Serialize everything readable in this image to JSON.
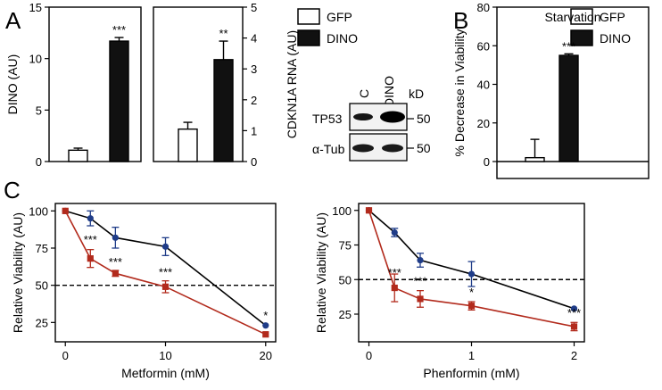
{
  "colors": {
    "black_series": "#111111",
    "white_series": "#ffffff",
    "metformin_blue": "#1f3c88",
    "metformin_red": "#b22a1c",
    "axis": "#000000"
  },
  "panel_labels": {
    "a": "A",
    "b": "B",
    "c": "C"
  },
  "chart_data": [
    {
      "id": "A1",
      "type": "bar",
      "categories": [
        "GFP",
        "DINO"
      ],
      "values": [
        1.1,
        11.7
      ],
      "errors": [
        0.2,
        0.35
      ],
      "colors": [
        "#ffffff",
        "#111111"
      ],
      "ylim": [
        0,
        15
      ],
      "yticks": [
        0,
        5,
        10,
        15
      ],
      "ylabel": "DINO (AU)",
      "significance": [
        "",
        "***"
      ]
    },
    {
      "id": "A2",
      "type": "bar",
      "categories": [
        "GFP",
        "DINO"
      ],
      "values": [
        1.05,
        3.3
      ],
      "errors": [
        0.22,
        0.6
      ],
      "colors": [
        "#ffffff",
        "#111111"
      ],
      "ylim": [
        0,
        5
      ],
      "yticks": [
        0,
        1,
        2,
        3,
        4,
        5
      ],
      "ylabel": "CDKN1A RNA (AU)",
      "significance": [
        "",
        "**"
      ]
    },
    {
      "id": "B",
      "type": "bar",
      "title": "Starvation",
      "categories": [
        "GFP",
        "DINO"
      ],
      "values": [
        2,
        55
      ],
      "errors": [
        9.5,
        0.8
      ],
      "colors": [
        "#ffffff",
        "#111111"
      ],
      "ylim": [
        -10,
        80
      ],
      "yticks": [
        0,
        20,
        40,
        60,
        80
      ],
      "ylabel": "% Decrease in Viability",
      "significance": [
        "",
        "***"
      ]
    },
    {
      "id": "C1",
      "type": "line",
      "xlabel": "Metformin (mM)",
      "ylabel": "Relative Viability (AU)",
      "xlim": [
        -1,
        21
      ],
      "ylim": [
        12,
        105
      ],
      "xticks": [
        0,
        10,
        20
      ],
      "yticks": [
        25,
        50,
        75,
        100
      ],
      "reference_line": 50,
      "series": [
        {
          "name": "GFP",
          "color": "#1f3c88",
          "marker": "circle",
          "x": [
            0,
            2.5,
            5,
            10,
            20
          ],
          "y": [
            100,
            95,
            82,
            76,
            23
          ],
          "err": [
            0,
            5,
            7,
            6,
            0
          ]
        },
        {
          "name": "DINO",
          "color": "#b22a1c",
          "marker": "square",
          "x": [
            0,
            2.5,
            5,
            10,
            20
          ],
          "y": [
            100,
            68,
            58,
            49,
            17
          ],
          "err": [
            0,
            6,
            2,
            4,
            0
          ]
        }
      ],
      "annotations": [
        {
          "x": 2.5,
          "y": 78,
          "text": "***"
        },
        {
          "x": 5,
          "y": 63,
          "text": "***"
        },
        {
          "x": 10,
          "y": 56,
          "text": "***"
        },
        {
          "x": 20,
          "y": 27,
          "text": "*"
        }
      ]
    },
    {
      "id": "C2",
      "type": "line",
      "xlabel": "Phenformin (mM)",
      "ylabel": "Relative Viability (AU)",
      "xlim": [
        -0.1,
        2.1
      ],
      "ylim": [
        5,
        105
      ],
      "xticks": [
        0,
        1,
        2
      ],
      "yticks": [
        25,
        50,
        75,
        100
      ],
      "reference_line": 50,
      "series": [
        {
          "name": "GFP",
          "color": "#1f3c88",
          "marker": "circle",
          "x": [
            0,
            0.25,
            0.5,
            1,
            2
          ],
          "y": [
            100,
            84,
            64,
            54,
            29
          ],
          "err": [
            0,
            3,
            5,
            9,
            0
          ]
        },
        {
          "name": "DINO",
          "color": "#b22a1c",
          "marker": "square",
          "x": [
            0,
            0.25,
            0.5,
            1,
            2
          ],
          "y": [
            100,
            44,
            36,
            31,
            16
          ],
          "err": [
            0,
            10,
            6,
            3,
            3
          ]
        }
      ],
      "annotations": [
        {
          "x": 0.25,
          "y": 52,
          "text": "***"
        },
        {
          "x": 0.5,
          "y": 46,
          "text": "***"
        },
        {
          "x": 1,
          "y": 38,
          "text": "*"
        },
        {
          "x": 2,
          "y": 23,
          "text": "***"
        }
      ]
    }
  ],
  "legend": {
    "gfp": "GFP",
    "dino": "DINO"
  },
  "western_blot": {
    "lanes": [
      "C",
      "DINO"
    ],
    "unit": "kD",
    "rows": [
      {
        "label": "TP53",
        "marker": "50"
      },
      {
        "label": "α-Tub",
        "marker": "50"
      }
    ]
  }
}
